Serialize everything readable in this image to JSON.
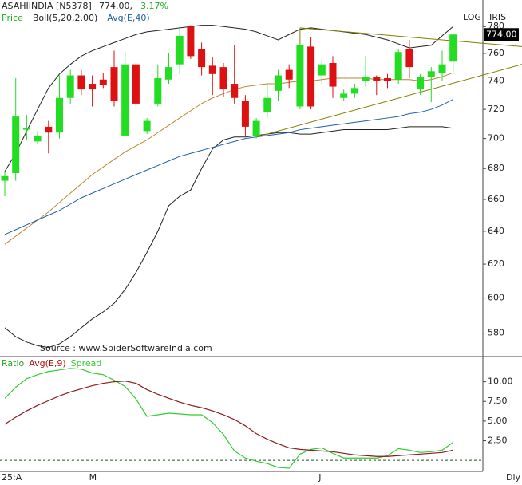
{
  "header": {
    "symbol": "ASAHIINDIA [N5378]",
    "price": "774.00,",
    "change": "3.17%",
    "scale_mode": "LOG",
    "tool": "IRIS",
    "price_box": "774.00",
    "source": "Source : www.SpiderSoftwareIndia.com",
    "period": "Dly"
  },
  "chart_data": [
    {
      "type": "candlestick",
      "legend": [
        "Price",
        "Boll(5,20,2.00)",
        "Avg(E,40)"
      ],
      "legend_colors": [
        "#22aa22",
        "#222222",
        "#1f5fa8"
      ],
      "categories": [
        "25:A",
        null,
        null,
        null,
        null,
        null,
        null,
        null,
        "M",
        null,
        null,
        null,
        null,
        null,
        null,
        null,
        null,
        null,
        null,
        null,
        null,
        null,
        null,
        null,
        null,
        null,
        null,
        null,
        null,
        "J",
        null,
        null,
        null,
        null,
        null,
        null,
        null,
        null,
        null,
        null,
        null,
        null
      ],
      "open": [
        672,
        677,
        706,
        698,
        708,
        704,
        728,
        744,
        738,
        741,
        750,
        702,
        752,
        705,
        724,
        741,
        752,
        780,
        763,
        751,
        750,
        738,
        726,
        702,
        718,
        733,
        748,
        722,
        765,
        744,
        753,
        728,
        731,
        740,
        743,
        742,
        741,
        763,
        734,
        743,
        746,
        754
      ],
      "high": [
        678,
        742,
        716,
        705,
        712,
        744,
        748,
        748,
        744,
        746,
        762,
        761,
        753,
        714,
        752,
        760,
        780,
        781,
        768,
        757,
        753,
        766,
        730,
        714,
        738,
        748,
        752,
        768,
        772,
        756,
        758,
        734,
        738,
        758,
        744,
        745,
        763,
        770,
        745,
        750,
        762,
        775
      ],
      "low": [
        662,
        672,
        699,
        696,
        690,
        700,
        724,
        730,
        722,
        735,
        722,
        701,
        722,
        703,
        722,
        738,
        745,
        756,
        744,
        730,
        729,
        724,
        702,
        700,
        714,
        726,
        735,
        720,
        720,
        738,
        728,
        726,
        728,
        736,
        730,
        735,
        738,
        742,
        730,
        725,
        740,
        745
      ],
      "close": [
        675,
        715,
        707,
        702,
        704,
        728,
        744,
        734,
        734,
        737,
        726,
        752,
        724,
        712,
        742,
        750,
        773,
        758,
        750,
        745,
        734,
        728,
        708,
        712,
        728,
        744,
        741,
        766,
        722,
        752,
        736,
        731,
        735,
        743,
        740,
        740,
        761,
        750,
        743,
        747,
        752,
        774
      ],
      "up_color": "#22dd22",
      "down_color": "#dd1111",
      "overlays": [
        {
          "color": "#222222",
          "values": [
            678,
            690,
            705,
            720,
            735,
            745,
            752,
            758,
            762,
            765,
            768,
            771,
            774,
            776,
            777,
            778,
            779,
            780,
            781,
            781,
            780,
            779,
            778,
            776,
            773,
            770,
            774,
            778,
            779,
            778,
            777,
            776,
            775,
            774,
            772,
            770,
            767,
            764,
            765,
            766,
            773,
            780
          ]
        },
        {
          "color": "#222222",
          "values": [
            583,
            578,
            575,
            573,
            572,
            574,
            578,
            583,
            588,
            592,
            597,
            605,
            615,
            627,
            640,
            656,
            662,
            666,
            680,
            693,
            699,
            701,
            701,
            702,
            703,
            704,
            704,
            703,
            703,
            704,
            705,
            706,
            706,
            706,
            706,
            706,
            707,
            708,
            708,
            708,
            708,
            707
          ]
        },
        {
          "color": "#b8862e",
          "values": [
            632,
            637,
            642,
            647,
            652,
            658,
            664,
            670,
            676,
            681,
            686,
            691,
            695,
            699,
            704,
            709,
            714,
            719,
            724,
            728,
            731,
            734,
            736,
            737,
            738,
            738,
            739,
            740,
            740,
            741,
            742,
            742,
            742,
            742,
            741,
            741,
            741,
            741,
            740,
            741,
            743,
            746
          ]
        },
        {
          "color": "#1f5fa8",
          "values": [
            638,
            641,
            644,
            647,
            650,
            653,
            657,
            661,
            664,
            667,
            670,
            673,
            676,
            679,
            682,
            685,
            688,
            690,
            692,
            694,
            696,
            698,
            700,
            701,
            702,
            703,
            704,
            706,
            707,
            708,
            709,
            710,
            711,
            712,
            713,
            714,
            715,
            717,
            718,
            720,
            723,
            727
          ]
        }
      ],
      "trendlines": [
        {
          "color": "#808000",
          "points": [
            [
              27,
              779
            ],
            [
              47.3,
              765
            ]
          ]
        },
        {
          "color": "#808000",
          "points": [
            [
              27,
              779
            ],
            [
              27,
              745
            ]
          ]
        },
        {
          "color": "#808000",
          "points": [
            [
              23,
              701
            ],
            [
              47.3,
              752
            ]
          ]
        }
      ],
      "log": true,
      "ylim": [
        567,
        788
      ],
      "yticks": [
        580,
        600,
        620,
        640,
        660,
        680,
        700,
        720,
        740,
        760,
        780
      ]
    },
    {
      "type": "line",
      "series": [
        {
          "name": "Ratio",
          "color": "#33cc33",
          "values": [
            7.9,
            9.3,
            10.4,
            10.9,
            11.3,
            11.5,
            11.7,
            11.6,
            11.1,
            10.9,
            10.2,
            9.4,
            7.8,
            5.6,
            5.8,
            6.0,
            5.9,
            5.8,
            5.8,
            4.8,
            3.3,
            1.2,
            0.3,
            -0.1,
            -0.4,
            -0.9,
            -1.0,
            0.8,
            1.4,
            1.6,
            0.9,
            0.3,
            0.3,
            0.3,
            0.3,
            0.6,
            1.5,
            1.3,
            1.0,
            1.1,
            1.3,
            2.3
          ]
        },
        {
          "name": "Avg(E,9)",
          "color": "#8b1a1a",
          "values": [
            4.6,
            5.5,
            6.3,
            7.0,
            7.6,
            8.2,
            8.7,
            9.1,
            9.5,
            9.8,
            10.0,
            10.1,
            9.8,
            9.0,
            8.4,
            7.9,
            7.4,
            7.0,
            6.7,
            6.3,
            5.8,
            5.2,
            4.4,
            3.4,
            2.7,
            2.1,
            1.6,
            1.4,
            1.3,
            1.2,
            1.1,
            0.9,
            0.7,
            0.6,
            0.5,
            0.5,
            0.6,
            0.7,
            0.8,
            0.9,
            1.0,
            1.3
          ]
        }
      ],
      "extra_legend": "Spread",
      "extra_legend_color": "#33cc33",
      "reference_line": 0,
      "ylim": [
        -1.3,
        12.9
      ],
      "yticks": [
        {
          "value": 2.5,
          "label": "2.50"
        },
        {
          "value": 5,
          "label": "5.00"
        },
        {
          "value": 7.5,
          "label": "7.50"
        },
        {
          "value": 10,
          "label": "10.00"
        }
      ]
    }
  ]
}
